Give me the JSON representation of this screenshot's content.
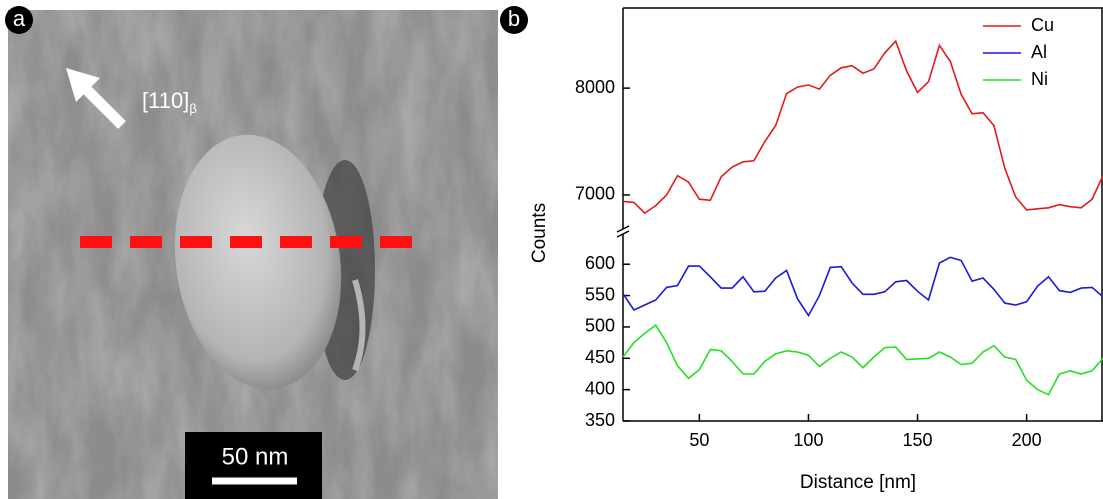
{
  "image_panel": {
    "label": "a",
    "direction": "[110]",
    "direction_subscript": "β",
    "scale_bar": "50 nm"
  },
  "chart_data": {
    "type": "line",
    "panel_label": "b",
    "x_label": "Distance [nm]",
    "y_label": "Counts",
    "x": [
      15,
      20,
      25,
      30,
      35,
      40,
      45,
      50,
      55,
      60,
      65,
      70,
      75,
      80,
      85,
      90,
      95,
      100,
      105,
      110,
      115,
      120,
      125,
      130,
      135,
      140,
      145,
      150,
      155,
      160,
      165,
      170,
      175,
      180,
      185,
      190,
      195,
      200,
      205,
      210,
      215,
      220,
      225,
      230,
      235
    ],
    "xlim": [
      15,
      235
    ],
    "xticks": [
      50,
      100,
      150,
      200
    ],
    "ylim": [
      350,
      645
    ],
    "yticks": [
      350,
      400,
      450,
      500,
      550,
      600
    ],
    "y2lim": [
      6700,
      8750
    ],
    "y2ticks": [
      7000,
      8000
    ],
    "legend": "upper right",
    "series": [
      {
        "name": "Cu",
        "color": "#e31a1c",
        "axis": "y2",
        "values": [
          6940,
          6930,
          6830,
          6900,
          7000,
          7180,
          7120,
          6960,
          6950,
          7170,
          7260,
          7310,
          7320,
          7500,
          7650,
          7950,
          8010,
          8030,
          7990,
          8120,
          8190,
          8210,
          8140,
          8180,
          8330,
          8440,
          8160,
          7960,
          8060,
          8400,
          8250,
          7940,
          7760,
          7770,
          7650,
          7250,
          6980,
          6860,
          6870,
          6880,
          6910,
          6890,
          6880,
          6960,
          7180
        ]
      },
      {
        "name": "Al",
        "color": "#1a1ad6",
        "values": [
          553,
          527,
          535,
          543,
          563,
          566,
          597,
          597,
          580,
          562,
          562,
          580,
          556,
          557,
          578,
          590,
          545,
          518,
          550,
          595,
          596,
          570,
          552,
          552,
          556,
          572,
          574,
          557,
          543,
          602,
          611,
          606,
          573,
          578,
          560,
          538,
          535,
          540,
          565,
          580,
          558,
          555,
          562,
          563,
          548
        ]
      },
      {
        "name": "Ni",
        "color": "#22e022",
        "values": [
          452,
          475,
          490,
          503,
          475,
          438,
          418,
          432,
          464,
          462,
          445,
          425,
          425,
          445,
          457,
          462,
          460,
          455,
          437,
          450,
          460,
          452,
          435,
          452,
          467,
          468,
          448,
          449,
          450,
          460,
          452,
          440,
          442,
          460,
          470,
          452,
          448,
          415,
          400,
          392,
          425,
          430,
          425,
          430,
          450
        ]
      }
    ]
  }
}
